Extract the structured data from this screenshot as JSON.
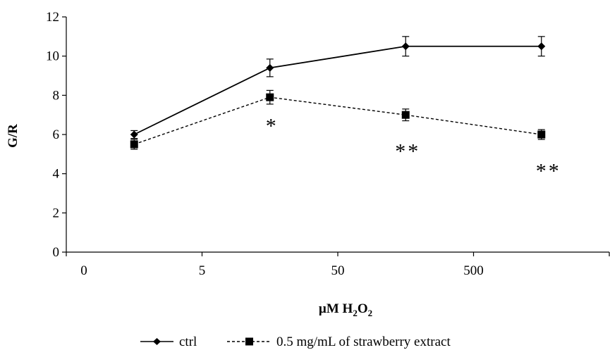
{
  "chart_data": {
    "type": "line",
    "categories": [
      "0",
      "5",
      "50",
      "500"
    ],
    "xlabel": "µM H₂O₂",
    "xlabel_main": "µM H",
    "xlabel_sub1": "2",
    "xlabel_mid": "O",
    "xlabel_sub2": "2",
    "ylabel": "G/R",
    "ylim": [
      0,
      12
    ],
    "yticks": [
      "0",
      "2",
      "4",
      "6",
      "8",
      "10",
      "12"
    ],
    "grid": false,
    "legend_position": "bottom",
    "series": [
      {
        "name": "ctrl",
        "marker": "diamond",
        "line_style": "solid",
        "x": [
          0,
          5,
          50,
          500
        ],
        "values": [
          6.0,
          9.4,
          10.5,
          10.5
        ],
        "errors": [
          0.2,
          0.45,
          0.5,
          0.5
        ]
      },
      {
        "name": "0.5 mg/mL of strawberry extract",
        "marker": "square",
        "line_style": "dashed",
        "x": [
          0,
          5,
          50,
          500
        ],
        "values": [
          5.5,
          7.9,
          7.0,
          6.0
        ],
        "errors": [
          0.25,
          0.35,
          0.3,
          0.25
        ]
      }
    ],
    "annotations": [
      {
        "text": "*",
        "x": 5,
        "y": 6.6
      },
      {
        "text": "**",
        "x": 50,
        "y": 5.3
      },
      {
        "text": "**",
        "x": 500,
        "y": 4.3
      }
    ]
  }
}
